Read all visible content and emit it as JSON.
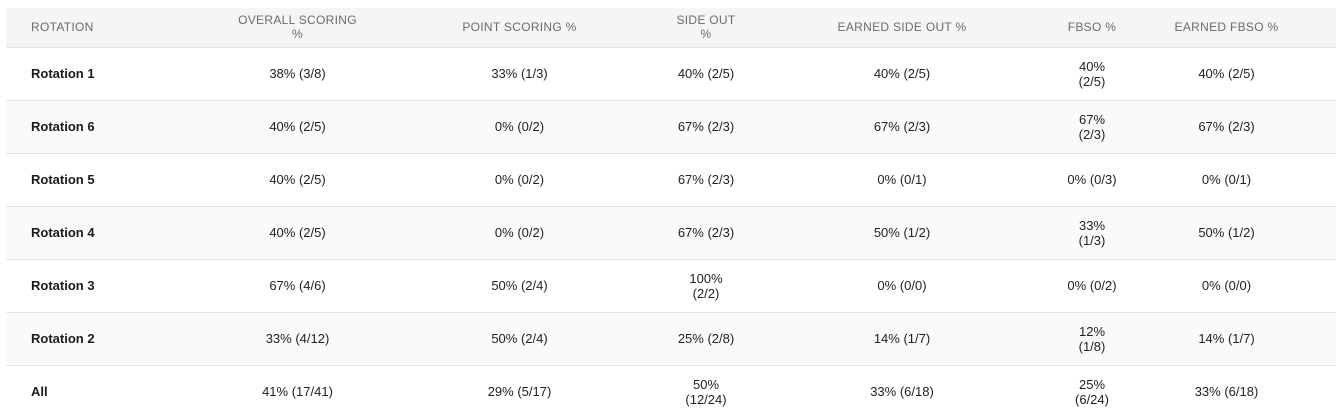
{
  "table": {
    "headers": [
      "ROTATION",
      "OVERALL SCORING %",
      "POINT SCORING %",
      "SIDE OUT %",
      "EARNED SIDE OUT %",
      "FBSO %",
      "EARNED FBSO %"
    ],
    "rows": [
      {
        "rotation": "Rotation 1",
        "overall": "38% (3/8)",
        "point": "33% (1/3)",
        "side_out": "40% (2/5)",
        "earned_side_out": "40% (2/5)",
        "fbso": "40% (2/5)",
        "earned_fbso": "40% (2/5)"
      },
      {
        "rotation": "Rotation 6",
        "overall": "40% (2/5)",
        "point": "0% (0/2)",
        "side_out": "67% (2/3)",
        "earned_side_out": "67% (2/3)",
        "fbso": "67% (2/3)",
        "earned_fbso": "67% (2/3)"
      },
      {
        "rotation": "Rotation 5",
        "overall": "40% (2/5)",
        "point": "0% (0/2)",
        "side_out": "67% (2/3)",
        "earned_side_out": "0% (0/1)",
        "fbso": "0% (0/3)",
        "earned_fbso": "0% (0/1)"
      },
      {
        "rotation": "Rotation 4",
        "overall": "40% (2/5)",
        "point": "0% (0/2)",
        "side_out": "67% (2/3)",
        "earned_side_out": "50% (1/2)",
        "fbso": "33% (1/3)",
        "earned_fbso": "50% (1/2)"
      },
      {
        "rotation": "Rotation 3",
        "overall": "67% (4/6)",
        "point": "50% (2/4)",
        "side_out": "100% (2/2)",
        "earned_side_out": "0% (0/0)",
        "fbso": "0% (0/2)",
        "earned_fbso": "0% (0/0)"
      },
      {
        "rotation": "Rotation 2",
        "overall": "33% (4/12)",
        "point": "50% (2/4)",
        "side_out": "25% (2/8)",
        "earned_side_out": "14% (1/7)",
        "fbso": "12% (1/8)",
        "earned_fbso": "14% (1/7)"
      },
      {
        "rotation": "All",
        "overall": "41% (17/41)",
        "point": "29% (5/17)",
        "side_out": "50% (12/24)",
        "earned_side_out": "33% (6/18)",
        "fbso": "25% (6/24)",
        "earned_fbso": "33% (6/18)"
      }
    ]
  }
}
